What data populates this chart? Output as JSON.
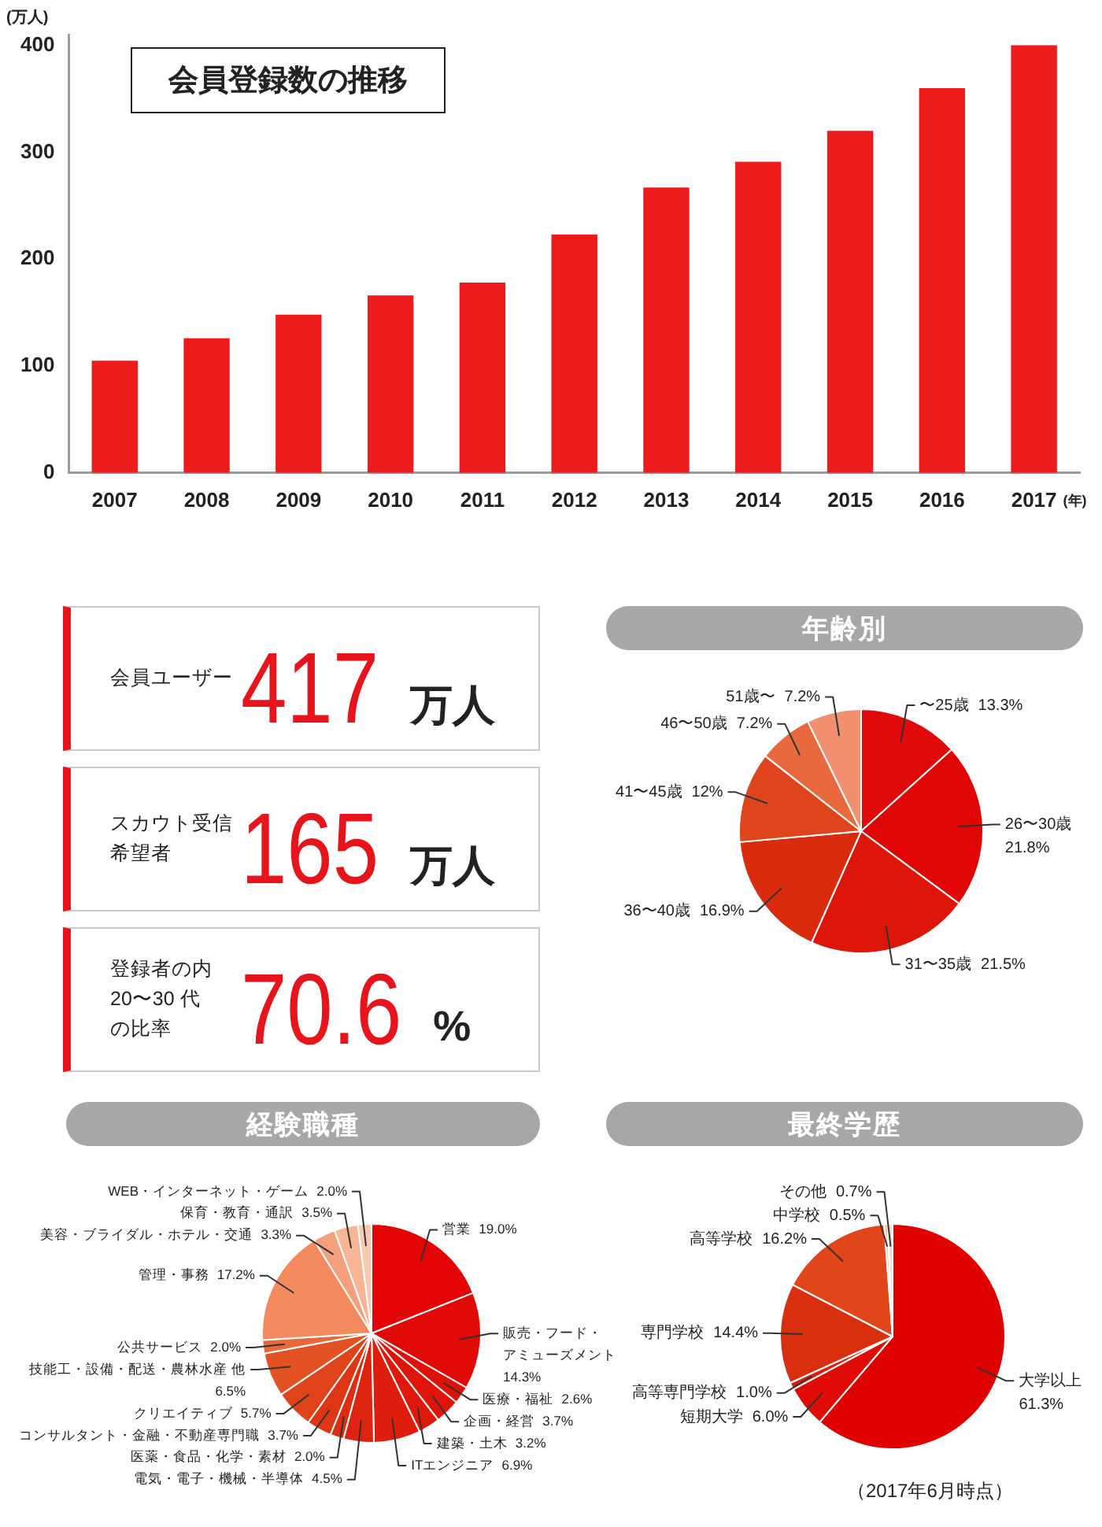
{
  "chart_data": [
    {
      "type": "bar",
      "title": "会員登録数の推移",
      "ylabel": "(万人)",
      "xlabel": "(年)",
      "categories": [
        "2007",
        "2008",
        "2009",
        "2010",
        "2011",
        "2012",
        "2013",
        "2014",
        "2015",
        "2016",
        "2017"
      ],
      "values": [
        105,
        126,
        148,
        166,
        178,
        223,
        267,
        291,
        320,
        360,
        400
      ],
      "color": "#ed1b1b",
      "ylim": [
        0,
        410
      ],
      "yticks": [
        0,
        100,
        200,
        300,
        400
      ]
    },
    {
      "type": "other",
      "annotations": [
        "会員ユーザー",
        "417",
        "万人"
      ]
    },
    {
      "type": "other",
      "annotations": [
        "スカウト受信",
        "希望者",
        "165",
        "万人"
      ]
    },
    {
      "type": "other",
      "annotations": [
        "登録者の内",
        "20〜30 代",
        "の比率",
        "70.6",
        "%"
      ]
    },
    {
      "type": "pie",
      "title": "年齢別",
      "categories": [
        "〜25歳",
        "26〜30歳",
        "31〜35歳",
        "36〜40歳",
        "41〜45歳",
        "46〜50歳",
        "51歳〜"
      ],
      "values": [
        13.3,
        21.8,
        21.5,
        16.9,
        12,
        7.2,
        7.2
      ],
      "value_labels": [
        "13.3%",
        "21.8%",
        "21.5%",
        "16.9%",
        "12%",
        "7.2%",
        "7.2%"
      ],
      "colors": [
        "#e10a0a",
        "#e20505",
        "#de1509",
        "#da2b0f",
        "#df451c",
        "#e9693e",
        "#f09070"
      ]
    },
    {
      "type": "pie",
      "title": "経験職種",
      "categories": [
        "営業",
        "販売・フード・アミューズメント",
        "医療・福祉",
        "企画・経営",
        "建築・土木",
        "ITエンジニア",
        "電気・電子・機械・半導体",
        "医薬・食品・化学・素材",
        "コンサルタント・金融・不動産専門職",
        "クリエイティブ",
        "技能工・設備・配送・農林水産 他",
        "公共サービス",
        "管理・事務",
        "美容・ブライダル・ホテル・交通",
        "保育・教育・通訳",
        "WEB・インターネット・ゲーム"
      ],
      "values": [
        19.0,
        14.3,
        2.6,
        3.7,
        3.2,
        6.9,
        4.5,
        2.0,
        3.7,
        5.7,
        6.5,
        2.0,
        17.2,
        3.3,
        3.5,
        2.0
      ],
      "value_labels": [
        "19.0%",
        "14.3%",
        "2.6%",
        "3.7%",
        "3.2%",
        "6.9%",
        "4.5%",
        "2.0%",
        "3.7%",
        "5.7%",
        "6.5%",
        "2.0%",
        "17.2%",
        "3.3%",
        "3.5%",
        "2.0%"
      ],
      "colors": [
        "#e30505",
        "#e10a06",
        "#e0100a",
        "#e0140b",
        "#e0180c",
        "#df1d0d",
        "#de240f",
        "#de2c12",
        "#de3515",
        "#e04219",
        "#e25222",
        "#e7683a",
        "#f28a5e",
        "#f4a07c",
        "#f7b595",
        "#f9c9b0"
      ]
    },
    {
      "type": "pie",
      "title": "最終学歴",
      "categories": [
        "大学以上",
        "短期大学",
        "高等専門学校",
        "専門学校",
        "高等学校",
        "中学校",
        "その他"
      ],
      "values": [
        61.3,
        6.0,
        1.0,
        14.4,
        16.2,
        0.5,
        0.7
      ],
      "value_labels": [
        "61.3%",
        "6.0%",
        "1.0%",
        "14.4%",
        "16.2%",
        "0.5%",
        "0.7%"
      ],
      "colors": [
        "#e00000",
        "#e10c08",
        "#e01a0c",
        "#d8300f",
        "#e0461a",
        "#eec4a8",
        "#f5dccb"
      ],
      "annotations": [
        "（2017年6月時点）"
      ]
    }
  ]
}
